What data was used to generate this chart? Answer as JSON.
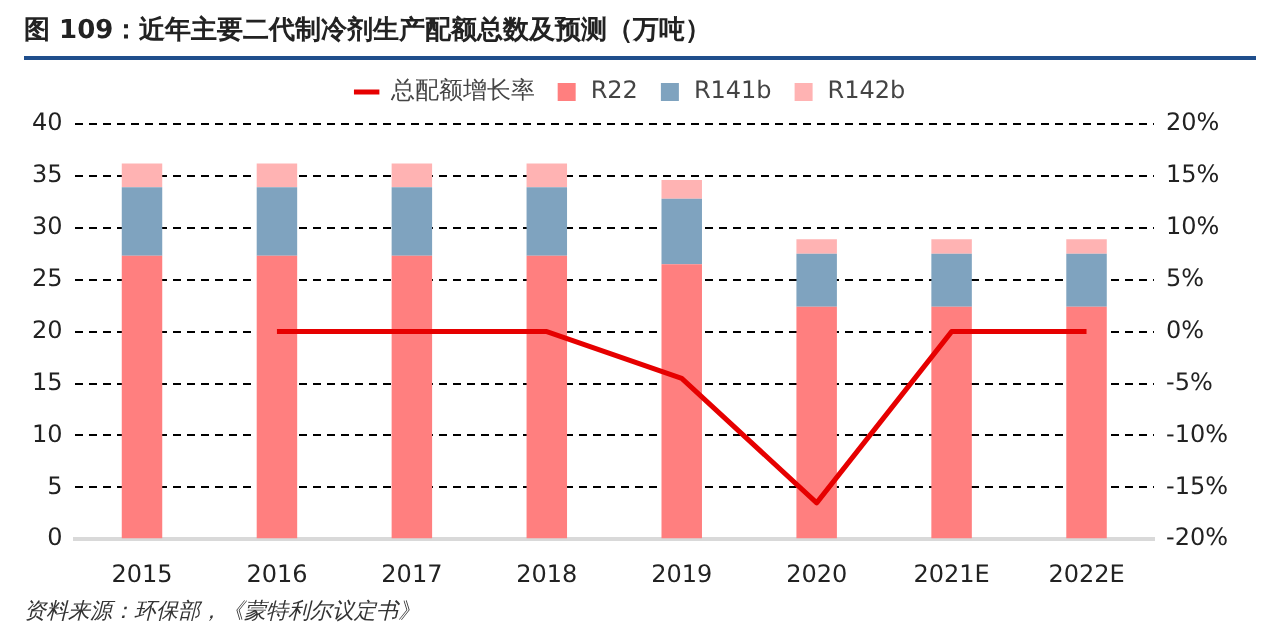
{
  "chart_data": {
    "type": "bar",
    "title": "图 109：近年主要二代制冷剂生产配额总数及预测（万吨）",
    "annotations": [
      "资料来源：环保部，《蒙特利尔议定书》"
    ],
    "categories": [
      "2015",
      "2016",
      "2017",
      "2018",
      "2019",
      "2020",
      "2021E",
      "2022E"
    ],
    "stacked": true,
    "grid": "y",
    "legend": "top",
    "marker": "none",
    "series": [
      {
        "name": "R22",
        "color": "#ff7f7f",
        "values": [
          27.3,
          27.3,
          27.3,
          27.3,
          26.5,
          22.4,
          22.4,
          22.4
        ]
      },
      {
        "name": "R141b",
        "color": "#7fa3bf",
        "values": [
          6.6,
          6.6,
          6.6,
          6.6,
          6.3,
          5.1,
          5.1,
          5.1
        ]
      },
      {
        "name": "R142b",
        "color": "#ffb3b3",
        "values": [
          2.3,
          2.3,
          2.3,
          2.3,
          1.8,
          1.4,
          1.4,
          1.4
        ]
      },
      {
        "name": "总配额增长率",
        "type": "line",
        "axis": "y2",
        "color": "#e60000",
        "values": [
          null,
          0,
          0,
          0,
          -4.5,
          -16.5,
          0,
          0
        ]
      }
    ],
    "ylim": [
      0,
      40
    ],
    "yticks": [
      0,
      5,
      10,
      15,
      20,
      25,
      30,
      35,
      40
    ],
    "y2lim": [
      -20,
      20
    ],
    "y2ticks": [
      {
        "value": -20,
        "label": "-20%"
      },
      {
        "value": -15,
        "label": "-15%"
      },
      {
        "value": -10,
        "label": "-10%"
      },
      {
        "value": -5,
        "label": "-5%"
      },
      {
        "value": 0,
        "label": "0%"
      },
      {
        "value": 5,
        "label": "5%"
      },
      {
        "value": 10,
        "label": "10%"
      },
      {
        "value": 15,
        "label": "15%"
      },
      {
        "value": 20,
        "label": "20%"
      }
    ]
  }
}
